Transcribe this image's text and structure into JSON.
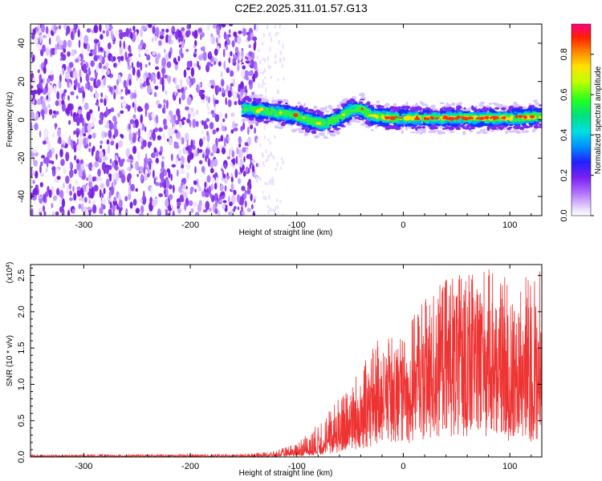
{
  "title": "C2E2.2025.311.01.57.G13",
  "chart_data": [
    {
      "type": "heatmap",
      "name": "spectrogram",
      "xlabel": "Height of straight line (km)",
      "ylabel": "Frequency (Hz)",
      "xlim": [
        -350,
        130
      ],
      "ylim": [
        -50,
        50
      ],
      "xticks": [
        -300,
        -200,
        -100,
        0,
        100
      ],
      "yticks": [
        -40,
        -20,
        0,
        20,
        40
      ],
      "xtick_labels": [
        "-300",
        "-200",
        "-100",
        "0",
        "100"
      ],
      "ytick_labels": [
        "-40",
        "-20",
        "0",
        "20",
        "40"
      ],
      "noise_region_x": [
        -350,
        -137
      ],
      "signal_band": {
        "x_start": -150,
        "center_freq_points": [
          [
            -150,
            6
          ],
          [
            -120,
            4
          ],
          [
            -100,
            2
          ],
          [
            -90,
            0
          ],
          [
            -75,
            -2
          ],
          [
            -60,
            1
          ],
          [
            -50,
            5
          ],
          [
            -40,
            6
          ],
          [
            -30,
            2
          ],
          [
            -10,
            1
          ],
          [
            0,
            1
          ],
          [
            50,
            1
          ],
          [
            100,
            1
          ],
          [
            130,
            2
          ]
        ],
        "half_width_hz": 4
      },
      "colorbar": {
        "label": "Normalized spectral amplitude",
        "range": [
          0,
          0.95
        ],
        "ticks": [
          0.0,
          0.2,
          0.4,
          0.6,
          0.8
        ],
        "tick_labels": [
          "0.0",
          "0.2",
          "0.4",
          "0.6",
          "0.8"
        ]
      }
    },
    {
      "type": "line",
      "name": "snr",
      "xlabel": "Height of straight line (km)",
      "ylabel": "SNR (10 * v/v)",
      "y_multiplier_label": "(x10",
      "y_multiplier_exp": "4",
      "y_multiplier_close": ")",
      "xlim": [
        -350,
        130
      ],
      "ylim": [
        0,
        2.65
      ],
      "xticks": [
        -300,
        -200,
        -100,
        0,
        100
      ],
      "yticks": [
        0.0,
        0.5,
        1.0,
        1.5,
        2.0,
        2.5
      ],
      "xtick_labels": [
        "-300",
        "-200",
        "-100",
        "0",
        "100"
      ],
      "ytick_labels": [
        "0.0",
        "0.5",
        "1.0",
        "1.5",
        "2.0",
        "2.5"
      ],
      "color": "#ee3333",
      "envelope": {
        "x": [
          -350,
          -150,
          -120,
          -100,
          -80,
          -60,
          -40,
          -20,
          0,
          20,
          40,
          60,
          80,
          100,
          115,
          130
        ],
        "mean": [
          0.01,
          0.012,
          0.02,
          0.05,
          0.12,
          0.3,
          0.55,
          0.75,
          0.9,
          1.1,
          1.3,
          1.45,
          1.3,
          1.05,
          0.95,
          0.9
        ],
        "peak": [
          0.03,
          0.04,
          0.08,
          0.2,
          0.45,
          0.85,
          1.25,
          1.7,
          1.7,
          2.2,
          2.45,
          2.6,
          2.6,
          2.5,
          2.6,
          2.6
        ]
      },
      "n_samples": 2400
    }
  ]
}
